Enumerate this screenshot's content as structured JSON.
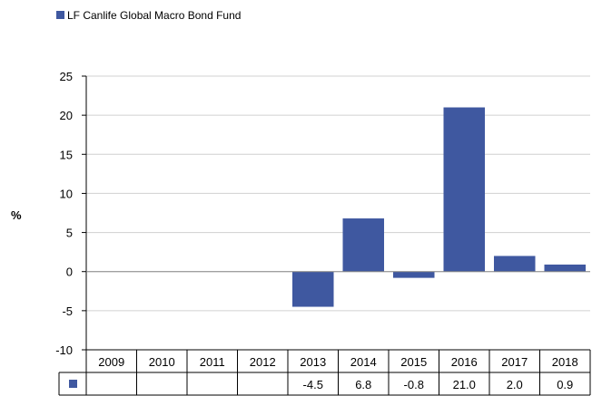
{
  "chart_data": {
    "type": "bar",
    "legend": {
      "label": "LF Canlife Global Macro Bond Fund",
      "placement": "top-left"
    },
    "series": [
      {
        "name": "LF Canlife Global Macro Bond Fund",
        "values": [
          null,
          null,
          null,
          null,
          -4.5,
          6.8,
          -0.8,
          21.0,
          2.0,
          0.9
        ],
        "labels": [
          "",
          "",
          "",
          "",
          "-4.5",
          "6.8",
          "-0.8",
          "21.0",
          "2.0",
          "0.9"
        ]
      }
    ],
    "categories": [
      "2009",
      "2010",
      "2011",
      "2012",
      "2013",
      "2014",
      "2015",
      "2016",
      "2017",
      "2018"
    ],
    "ylabel": "%",
    "ylim": [
      -10,
      25
    ],
    "yticks": [
      "25",
      "20",
      "15",
      "10",
      "5",
      "0",
      "-5",
      "-10"
    ],
    "grid": true,
    "data_table": true
  },
  "colors": {
    "bar": "#3f58a0",
    "grid": "#d0d0d0",
    "axis": "#000000"
  }
}
